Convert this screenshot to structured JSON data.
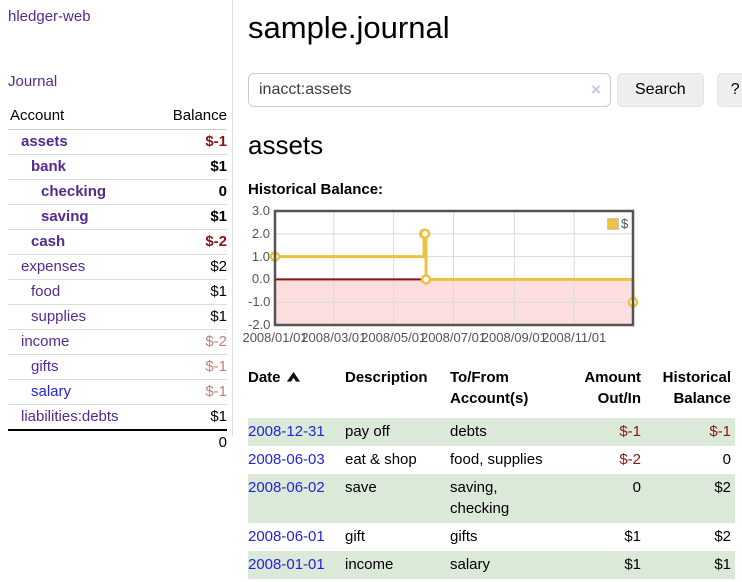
{
  "sidebar": {
    "brand": "hledger-web",
    "journal_link": "Journal",
    "accounts": {
      "header_account": "Account",
      "header_balance": "Balance",
      "rows": [
        {
          "name": "assets",
          "indent": 0,
          "bold": true,
          "blue": false,
          "balance": "$-1",
          "tone": "neg-strong"
        },
        {
          "name": "bank",
          "indent": 1,
          "bold": true,
          "blue": false,
          "balance": "$1",
          "tone": "normal"
        },
        {
          "name": "checking",
          "indent": 2,
          "bold": true,
          "blue": false,
          "balance": "0",
          "tone": "normal"
        },
        {
          "name": "saving",
          "indent": 2,
          "bold": true,
          "blue": false,
          "balance": "$1",
          "tone": "normal"
        },
        {
          "name": "cash",
          "indent": 1,
          "bold": true,
          "blue": false,
          "balance": "$-2",
          "tone": "neg-strong"
        },
        {
          "name": "expenses",
          "indent": 0,
          "bold": false,
          "blue": false,
          "balance": "$2",
          "tone": "normal"
        },
        {
          "name": "food",
          "indent": 1,
          "bold": false,
          "blue": false,
          "balance": "$1",
          "tone": "normal"
        },
        {
          "name": "supplies",
          "indent": 1,
          "bold": false,
          "blue": false,
          "balance": "$1",
          "tone": "normal"
        },
        {
          "name": "income",
          "indent": 0,
          "bold": false,
          "blue": false,
          "balance": "$-2",
          "tone": "neg-soft"
        },
        {
          "name": "gifts",
          "indent": 1,
          "bold": false,
          "blue": false,
          "balance": "$-1",
          "tone": "neg-soft"
        },
        {
          "name": "salary",
          "indent": 1,
          "bold": false,
          "blue": true,
          "balance": "$-1",
          "tone": "neg-soft"
        },
        {
          "name": "liabilities:debts",
          "indent": 0,
          "bold": false,
          "blue": false,
          "balance": "$1",
          "tone": "normal"
        }
      ],
      "total": "0"
    }
  },
  "main": {
    "title": "sample.journal",
    "search": {
      "value": "inacct:assets",
      "clear_icon": "×",
      "button_label": "Search",
      "help_label": "?"
    },
    "account_heading": "assets",
    "chart_label": "Historical Balance:"
  },
  "chart_data": {
    "type": "line",
    "title": "Historical Balance",
    "style": "steps",
    "series": [
      {
        "name": "$",
        "color": "#edc240",
        "points": [
          [
            "2008-01-01",
            1
          ],
          [
            "2008-06-01",
            2
          ],
          [
            "2008-06-02",
            2
          ],
          [
            "2008-06-03",
            0
          ],
          [
            "2008-12-31",
            -1
          ]
        ]
      }
    ],
    "x_range": [
      "2008-01-01",
      "2008-12-31"
    ],
    "x_ticks": [
      "2008/01/01",
      "2008/03/01",
      "2008/05/01",
      "2008/07/01",
      "2008/09/01",
      "2008/11/01"
    ],
    "y_ticks": [
      "3.0",
      "2.0",
      "1.0",
      "0.0",
      "-1.0",
      "-2.0"
    ],
    "ylim": [
      -2,
      3
    ],
    "grid": true,
    "legend_position": "top-right",
    "negative_region_fill": "#fcdede",
    "zero_line_color": "#8f0e0e",
    "grid_color": "#d9d9d9",
    "border_color": "#545454"
  },
  "register": {
    "headers": [
      {
        "line1": "Date",
        "line2": "",
        "align": "left",
        "sort": true
      },
      {
        "line1": "Description",
        "line2": "",
        "align": "left",
        "sort": false
      },
      {
        "line1": "To/From",
        "line2": "Account(s)",
        "align": "left",
        "sort": false
      },
      {
        "line1": "Amount",
        "line2": "Out/In",
        "align": "right",
        "sort": false
      },
      {
        "line1": "Historical",
        "line2": "Balance",
        "align": "right",
        "sort": false
      }
    ],
    "rows": [
      {
        "date": "2008-12-31",
        "description": "pay off",
        "accounts_lines": [
          "debts"
        ],
        "amount": "$-1",
        "amount_negative": true,
        "balance": "$-1",
        "balance_negative": true,
        "shaded": true
      },
      {
        "date": "2008-06-03",
        "description": "eat & shop",
        "accounts_lines": [
          "food, supplies"
        ],
        "amount": "$-2",
        "amount_negative": true,
        "balance": "0",
        "balance_negative": false,
        "shaded": false
      },
      {
        "date": "2008-06-02",
        "description": "save",
        "accounts_lines": [
          "saving,",
          "checking"
        ],
        "amount": "0",
        "amount_negative": false,
        "balance": "$2",
        "balance_negative": false,
        "shaded": true
      },
      {
        "date": "2008-06-01",
        "description": "gift",
        "accounts_lines": [
          "gifts"
        ],
        "amount": "$1",
        "amount_negative": false,
        "balance": "$2",
        "balance_negative": false,
        "shaded": false
      },
      {
        "date": "2008-01-01",
        "description": "income",
        "accounts_lines": [
          "salary"
        ],
        "amount": "$1",
        "amount_negative": false,
        "balance": "$1",
        "balance_negative": false,
        "shaded": true
      }
    ]
  },
  "colors": {
    "link_purple": "#552a90",
    "link_blue": "#2323dd",
    "negative_strong": "#8b1414",
    "negative_soft": "#c17f7f",
    "row_shade_green": "#dbe9d8",
    "series_yellow": "#edc240"
  }
}
